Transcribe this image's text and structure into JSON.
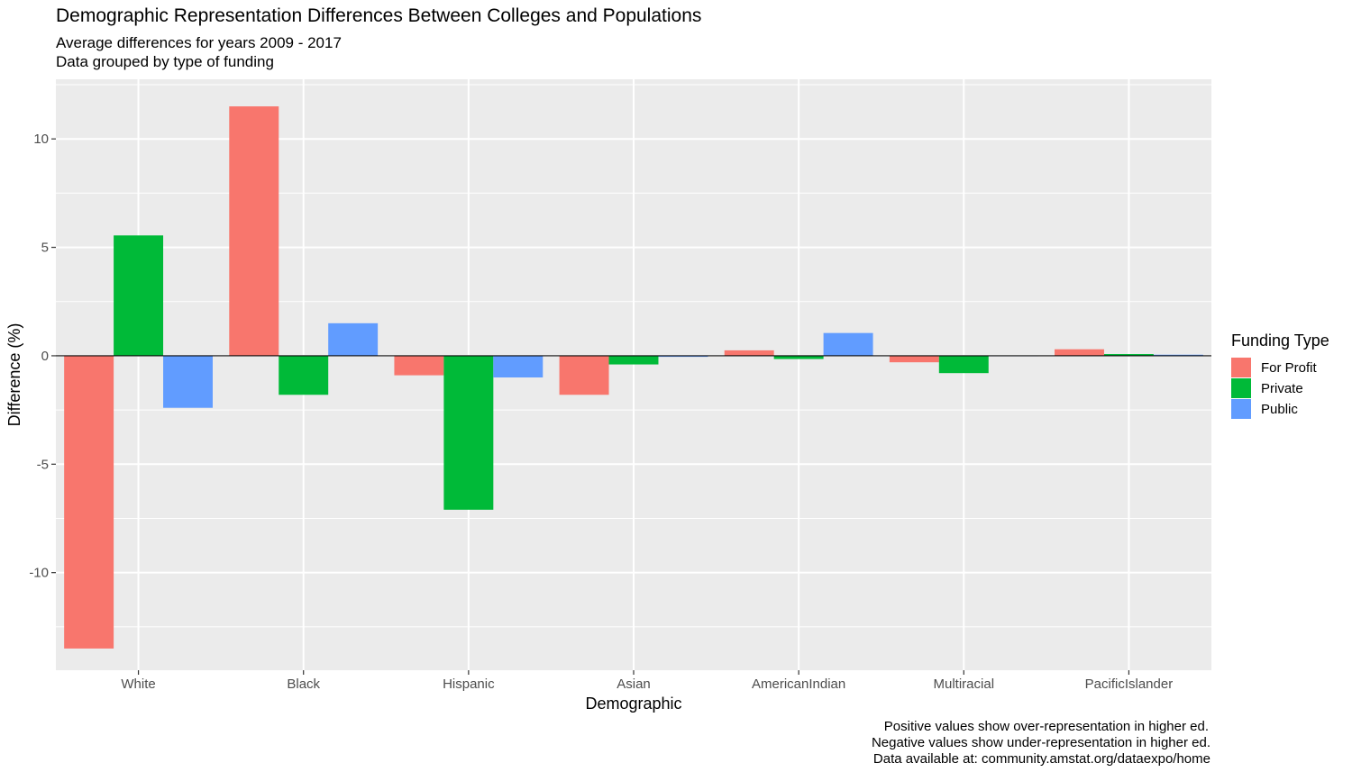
{
  "chart_data": {
    "type": "bar",
    "title": "Demographic Representation Differences Between Colleges and Populations",
    "subtitle": [
      "Average differences for years 2009 - 2017",
      "Data grouped by type of funding"
    ],
    "xlabel": "Demographic",
    "ylabel": "Difference (%)",
    "categories": [
      "White",
      "Black",
      "Hispanic",
      "Asian",
      "AmericanIndian",
      "Multiracial",
      "PacificIslander"
    ],
    "series": [
      {
        "name": "For Profit",
        "color": "#F8766D",
        "values": [
          -13.5,
          11.5,
          -0.9,
          -1.8,
          0.25,
          -0.3,
          0.3
        ]
      },
      {
        "name": "Private",
        "color": "#00BA38",
        "values": [
          5.55,
          -1.8,
          -7.1,
          -0.4,
          -0.15,
          -0.8,
          0.08
        ]
      },
      {
        "name": "Public",
        "color": "#619CFF",
        "values": [
          -2.4,
          1.5,
          -1.0,
          -0.05,
          1.05,
          0.0,
          0.05
        ]
      }
    ],
    "ylim": [
      -14.5,
      12.75
    ],
    "yticks": [
      -10,
      -5,
      0,
      5,
      10
    ],
    "ytick_labels": [
      "-10",
      "-5",
      "0",
      "5",
      "10"
    ],
    "legend": {
      "title": "Funding Type",
      "position": "right"
    },
    "grid": true,
    "caption": [
      "Positive values show over-representation in higher ed.",
      "Negative values show under-representation in higher ed.",
      "Data available at: community.amstat.org/dataexpo/home"
    ]
  }
}
